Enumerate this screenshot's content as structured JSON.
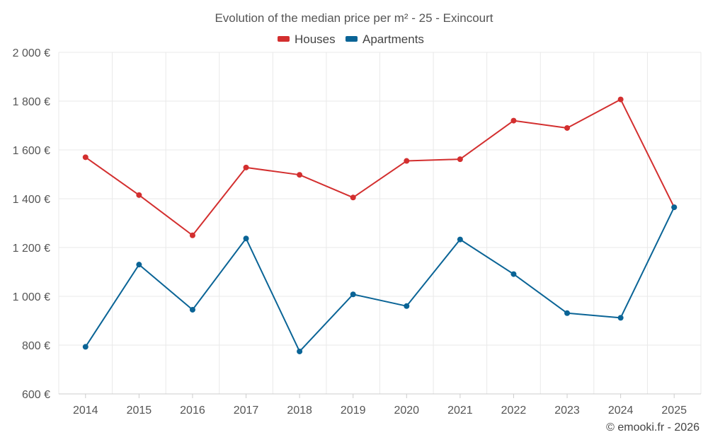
{
  "chart_data": {
    "type": "line",
    "title": "Evolution of the median price per m² - 25 - Exincourt",
    "categories": [
      "2014",
      "2015",
      "2016",
      "2017",
      "2018",
      "2019",
      "2020",
      "2021",
      "2022",
      "2023",
      "2024",
      "2025"
    ],
    "series": [
      {
        "name": "Houses",
        "color": "#d32f2f",
        "values": [
          1570,
          1415,
          1250,
          1528,
          1498,
          1405,
          1555,
          1562,
          1720,
          1690,
          1807,
          1365
        ]
      },
      {
        "name": "Apartments",
        "color": "#0a6496",
        "values": [
          793,
          1130,
          945,
          1237,
          774,
          1008,
          960,
          1233,
          1091,
          931,
          912,
          1365
        ]
      }
    ],
    "ylim": [
      600,
      2000
    ],
    "yticks": [
      600,
      800,
      1000,
      1200,
      1400,
      1600,
      1800,
      2000
    ],
    "ytick_labels": [
      "600 €",
      "800 €",
      "1 000 €",
      "1 200 €",
      "1 400 €",
      "1 600 €",
      "1 800 €",
      "2 000 €"
    ],
    "xlabel": "",
    "ylabel": "",
    "grid": true,
    "legend_position": "top-center"
  },
  "credit": "© emooki.fr - 2026"
}
